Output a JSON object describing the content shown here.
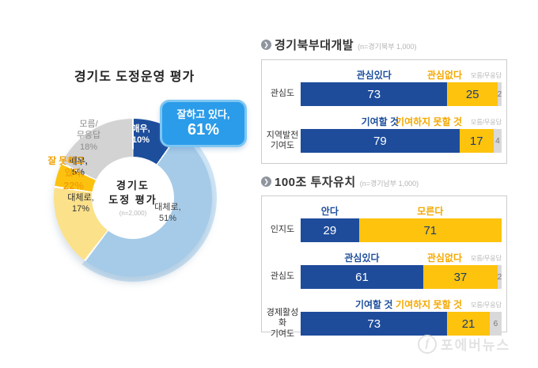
{
  "donut": {
    "title": "경기도 도정운영 평가",
    "center_line1": "경기도",
    "center_line2": "도정 평가",
    "center_n": "(n=2,000)",
    "callout_line1": "잘하고 있다,",
    "callout_line2": "61%",
    "neg_callout_line1": "잘 못하고",
    "neg_callout_line2": "있다,",
    "neg_callout_line3": "22%",
    "labels": {
      "very_good_1": "매우,",
      "very_good_2": "10%",
      "mostly_good_1": "대체로,",
      "mostly_good_2": "51%",
      "mostly_bad_1": "대체로,",
      "mostly_bad_2": "17%",
      "very_bad_1": "매우,",
      "very_bad_2": "5%",
      "dk_1": "모름/",
      "dk_2": "무응답",
      "dk_3": "18%"
    }
  },
  "sections": [
    {
      "title": "경기북부대개발",
      "n": "(n=경기북부 1,000)"
    },
    {
      "title": "100조 투자유치",
      "n": "(n=경기남부 1,000)"
    }
  ],
  "watermark": {
    "icon": "f",
    "text": "포에버뉴스"
  },
  "colors": {
    "navy": "#1d4e9c",
    "light_blue": "#a6cbe8",
    "light_blue_rim": "#cfe6f7",
    "light_yellow": "#fbe18a",
    "gold": "#fdc20f",
    "gray_segment": "#d3d3d4",
    "callout_blue": "#2b9ce9",
    "orange_label": "#f2a105",
    "bar_navy": "#1e4c9b",
    "bar_yellow": "#fdc30d",
    "bar_gray": "#d9d9d9"
  },
  "chart_data": [
    {
      "type": "pie",
      "subtype": "donut",
      "title": "경기도 도정운영 평가",
      "sample": "(n=2,000)",
      "labels": [
        "매우 잘하고 있다",
        "대체로 잘하고 있다",
        "대체로 잘 못하고 있다",
        "매우 잘 못하고 있다",
        "모름/무응답"
      ],
      "values": [
        10,
        51,
        17,
        5,
        18
      ],
      "colors": [
        "#1d4e9c",
        "#a6cbe8",
        "#fbe18a",
        "#fdc20f",
        "#d3d3d4"
      ],
      "annotations": [
        "잘하고 있다, 61%",
        "잘 못하고 있다, 22%"
      ],
      "start_angle_deg": 0,
      "direction": "clockwise"
    },
    {
      "type": "bar",
      "subtype": "horizontal-stacked",
      "title": "경기북부대개발",
      "sample": "(n=경기북부 1,000)",
      "xlim": [
        0,
        100
      ],
      "rows": [
        {
          "label_lines": [
            "관심도"
          ],
          "segments": [
            {
              "name": "관심있다",
              "value": 73,
              "role": "pos"
            },
            {
              "name": "관심없다",
              "value": 25,
              "role": "neg"
            },
            {
              "name": "모름/무응답",
              "value": 2,
              "role": "dk"
            }
          ]
        },
        {
          "label_lines": [
            "지역발전",
            "기여도"
          ],
          "segments": [
            {
              "name": "기여할 것",
              "value": 79,
              "role": "pos"
            },
            {
              "name": "기여하지 못할 것",
              "value": 17,
              "role": "neg"
            },
            {
              "name": "모름/무응답",
              "value": 4,
              "role": "dk"
            }
          ]
        }
      ]
    },
    {
      "type": "bar",
      "subtype": "horizontal-stacked",
      "title": "100조 투자유치",
      "sample": "(n=경기남부 1,000)",
      "xlim": [
        0,
        100
      ],
      "rows": [
        {
          "label_lines": [
            "인지도"
          ],
          "segments": [
            {
              "name": "안다",
              "value": 29,
              "role": "pos"
            },
            {
              "name": "모른다",
              "value": 71,
              "role": "neg"
            }
          ]
        },
        {
          "label_lines": [
            "관심도"
          ],
          "segments": [
            {
              "name": "관심있다",
              "value": 61,
              "role": "pos"
            },
            {
              "name": "관심없다",
              "value": 37,
              "role": "neg"
            },
            {
              "name": "모름/무응답",
              "value": 2,
              "role": "dk"
            }
          ]
        },
        {
          "label_lines": [
            "경제활성화",
            "기여도"
          ],
          "segments": [
            {
              "name": "기여할 것",
              "value": 73,
              "role": "pos"
            },
            {
              "name": "기여하지 못할 것",
              "value": 21,
              "role": "neg"
            },
            {
              "name": "모름/무응답",
              "value": 6,
              "role": "dk"
            }
          ]
        }
      ]
    }
  ]
}
